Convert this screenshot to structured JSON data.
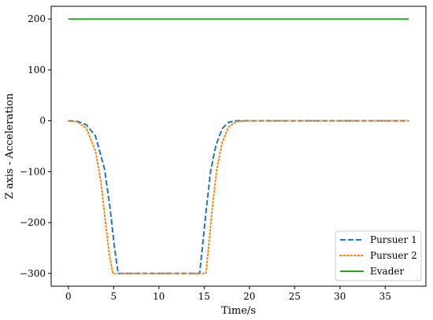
{
  "chart_data": {
    "type": "line",
    "title": "",
    "xlabel": "Time/s",
    "ylabel": "Z axis - Acceleration",
    "xlim": [
      -1.9,
      39.5
    ],
    "ylim": [
      -325,
      225
    ],
    "xticks": [
      0,
      5,
      10,
      15,
      20,
      25,
      30,
      35
    ],
    "yticks": [
      -300,
      -200,
      -100,
      0,
      100,
      200
    ],
    "ytick_labels": [
      "−300",
      "−200",
      "−100",
      "0",
      "100",
      "200"
    ],
    "grid": false,
    "legend": {
      "position": "lower-right"
    },
    "series": [
      {
        "name": "Pursuer 1",
        "color": "#1f77b4",
        "style": "dashed",
        "points": [
          [
            0,
            0
          ],
          [
            1,
            -1
          ],
          [
            2,
            -8
          ],
          [
            3,
            -30
          ],
          [
            4,
            -95
          ],
          [
            4.6,
            -170
          ],
          [
            5.1,
            -250
          ],
          [
            5.5,
            -300
          ],
          [
            14.5,
            -300
          ],
          [
            14.8,
            -250
          ],
          [
            15.2,
            -180
          ],
          [
            15.7,
            -100
          ],
          [
            16.3,
            -48
          ],
          [
            17,
            -15
          ],
          [
            17.7,
            -3
          ],
          [
            18.5,
            0
          ],
          [
            20,
            0
          ],
          [
            37.6,
            0
          ]
        ]
      },
      {
        "name": "Pursuer 2",
        "color": "#ff7f0e",
        "style": "dotted",
        "points": [
          [
            0,
            0
          ],
          [
            1,
            -2
          ],
          [
            2,
            -15
          ],
          [
            3,
            -60
          ],
          [
            3.6,
            -120
          ],
          [
            4.1,
            -200
          ],
          [
            4.5,
            -260
          ],
          [
            4.9,
            -300
          ],
          [
            15.2,
            -300
          ],
          [
            15.5,
            -245
          ],
          [
            15.9,
            -170
          ],
          [
            16.4,
            -95
          ],
          [
            17,
            -42
          ],
          [
            17.7,
            -12
          ],
          [
            18.5,
            -2
          ],
          [
            19.5,
            0
          ],
          [
            37.6,
            0
          ]
        ]
      },
      {
        "name": "Evader",
        "color": "#2ca02c",
        "style": "solid",
        "points": [
          [
            0,
            200
          ],
          [
            37.6,
            200
          ]
        ]
      }
    ]
  }
}
